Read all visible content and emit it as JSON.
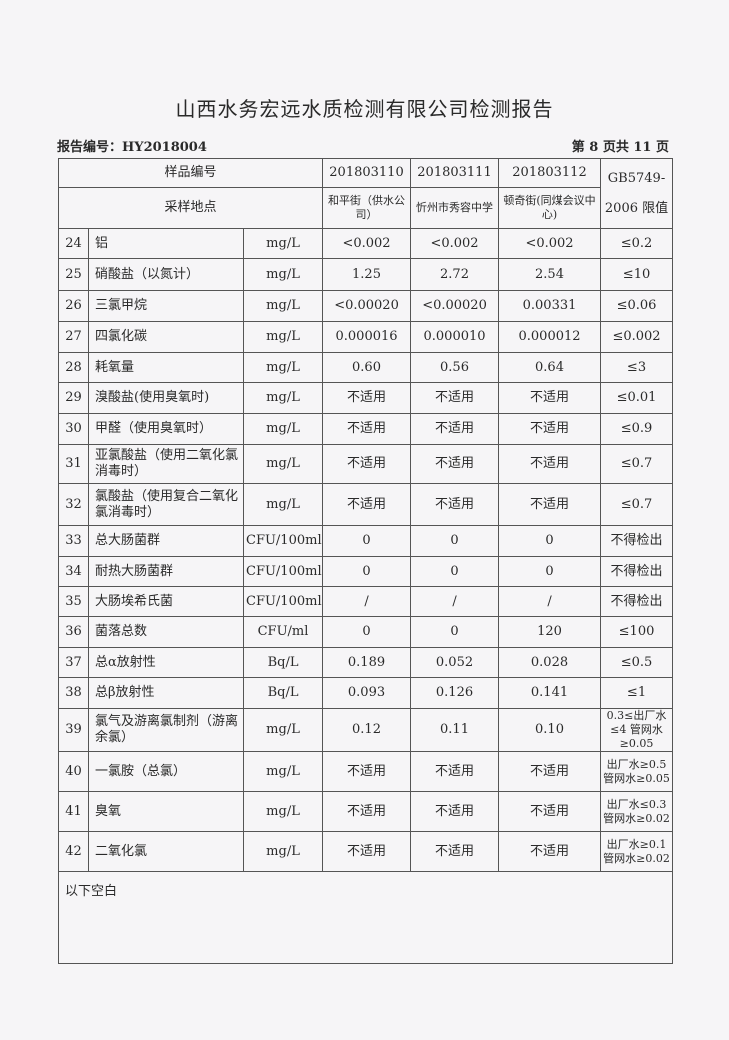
{
  "title": "山西水务宏远水质检测有限公司检测报告",
  "report_no": "报告编号：HY2018004",
  "page": "第 8 页共 11 页",
  "header": {
    "sample_no_label": "样品编号",
    "location_label": "采样地点",
    "samples": [
      "201803110",
      "201803111",
      "201803112"
    ],
    "locations": [
      "和平街（供水公司）",
      "忻州市秀容中学",
      "顿奇街(同煤会议中心)"
    ],
    "limit_label_1": "GB5749-",
    "limit_label_2": "2006 限值"
  },
  "rows": [
    {
      "no": "24",
      "item": "铝",
      "unit": "mg/L",
      "v": [
        "<0.002",
        "<0.002",
        "<0.002"
      ],
      "limit": "≤0.2"
    },
    {
      "no": "25",
      "item": "硝酸盐（以氮计）",
      "unit": "mg/L",
      "v": [
        "1.25",
        "2.72",
        "2.54"
      ],
      "limit": "≤10"
    },
    {
      "no": "26",
      "item": "三氯甲烷",
      "unit": "mg/L",
      "v": [
        "<0.00020",
        "<0.00020",
        "0.00331"
      ],
      "limit": "≤0.06"
    },
    {
      "no": "27",
      "item": "四氯化碳",
      "unit": "mg/L",
      "v": [
        "0.000016",
        "0.000010",
        "0.000012"
      ],
      "limit": "≤0.002"
    },
    {
      "no": "28",
      "item": "耗氧量",
      "unit": "mg/L",
      "v": [
        "0.60",
        "0.56",
        "0.64"
      ],
      "limit": "≤3"
    },
    {
      "no": "29",
      "item": "溴酸盐(使用臭氧时)",
      "unit": "mg/L",
      "v": [
        "不适用",
        "不适用",
        "不适用"
      ],
      "limit": "≤0.01"
    },
    {
      "no": "30",
      "item": "甲醛（使用臭氧时）",
      "unit": "mg/L",
      "v": [
        "不适用",
        "不适用",
        "不适用"
      ],
      "limit": "≤0.9"
    },
    {
      "no": "31",
      "item": "亚氯酸盐（使用二氧化氯消毒时）",
      "unit": "mg/L",
      "v": [
        "不适用",
        "不适用",
        "不适用"
      ],
      "limit": "≤0.7"
    },
    {
      "no": "32",
      "item": "氯酸盐（使用复合二氧化氯消毒时）",
      "unit": "mg/L",
      "v": [
        "不适用",
        "不适用",
        "不适用"
      ],
      "limit": "≤0.7"
    },
    {
      "no": "33",
      "item": "总大肠菌群",
      "unit": "CFU/100ml",
      "v": [
        "0",
        "0",
        "0"
      ],
      "limit": "不得检出"
    },
    {
      "no": "34",
      "item": "耐热大肠菌群",
      "unit": "CFU/100ml",
      "v": [
        "0",
        "0",
        "0"
      ],
      "limit": "不得检出"
    },
    {
      "no": "35",
      "item": "大肠埃希氏菌",
      "unit": "CFU/100ml",
      "v": [
        "/",
        "/",
        "/"
      ],
      "limit": "不得检出"
    },
    {
      "no": "36",
      "item": "菌落总数",
      "unit": "CFU/ml",
      "v": [
        "0",
        "0",
        "120"
      ],
      "limit": "≤100"
    },
    {
      "no": "37",
      "item": "总α放射性",
      "unit": "Bq/L",
      "v": [
        "0.189",
        "0.052",
        "0.028"
      ],
      "limit": "≤0.5"
    },
    {
      "no": "38",
      "item": "总β放射性",
      "unit": "Bq/L",
      "v": [
        "0.093",
        "0.126",
        "0.141"
      ],
      "limit": "≤1"
    },
    {
      "no": "39",
      "item": "氯气及游离氯制剂（游离余氯）",
      "unit": "mg/L",
      "v": [
        "0.12",
        "0.11",
        "0.10"
      ],
      "limit": "0.3≤出厂水≤4 管网水≥0.05"
    },
    {
      "no": "40",
      "item": "一氯胺（总氯）",
      "unit": "mg/L",
      "v": [
        "不适用",
        "不适用",
        "不适用"
      ],
      "limit": "出厂水≥0.5 管网水≥0.05"
    },
    {
      "no": "41",
      "item": "臭氧",
      "unit": "mg/L",
      "v": [
        "不适用",
        "不适用",
        "不适用"
      ],
      "limit": "出厂水≤0.3 管网水≥0.02"
    },
    {
      "no": "42",
      "item": "二氧化氯",
      "unit": "mg/L",
      "v": [
        "不适用",
        "不适用",
        "不适用"
      ],
      "limit": "出厂水≥0.1 管网水≥0.02"
    }
  ],
  "footer_note": "以下空白"
}
